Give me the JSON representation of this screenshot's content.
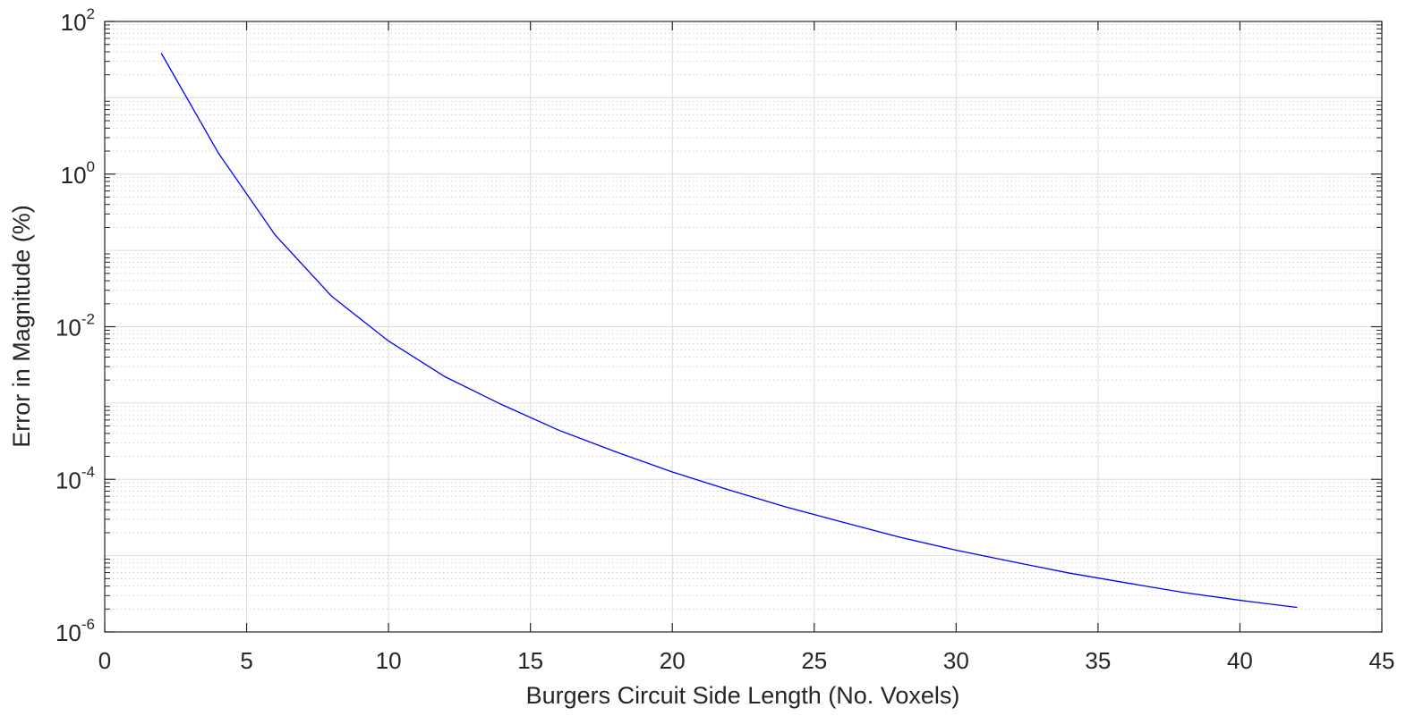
{
  "chart_data": {
    "type": "line",
    "xlabel": "Burgers Circuit Side Length (No. Voxels)",
    "ylabel": "Error in Magnitude (%)",
    "xlim": [
      0,
      45
    ],
    "ylim": [
      1e-06,
      100
    ],
    "yscale": "log",
    "grid": true,
    "minor_grid": true,
    "xticks": [
      "0",
      "5",
      "10",
      "15",
      "20",
      "25",
      "30",
      "35",
      "40",
      "45"
    ],
    "yticks": [
      {
        "base": "10",
        "exp": "-6"
      },
      {
        "base": "10",
        "exp": "-4"
      },
      {
        "base": "10",
        "exp": "-2"
      },
      {
        "base": "10",
        "exp": "0"
      },
      {
        "base": "10",
        "exp": "2"
      }
    ],
    "series": [
      {
        "color": "#0000ff",
        "x": [
          2,
          4,
          6,
          8,
          10,
          12,
          14,
          16,
          18,
          20,
          22,
          24,
          26,
          28,
          30,
          32,
          34,
          36,
          38,
          40,
          42
        ],
        "y": [
          38,
          1.9,
          0.16,
          0.025,
          0.0065,
          0.0022,
          0.00095,
          0.00044,
          0.00023,
          0.000125,
          7.25e-05,
          4.35e-05,
          2.75e-05,
          1.75e-05,
          1.18e-05,
          8.3e-06,
          5.9e-06,
          4.4e-06,
          3.3e-06,
          2.6e-06,
          2.1e-06
        ]
      }
    ]
  }
}
